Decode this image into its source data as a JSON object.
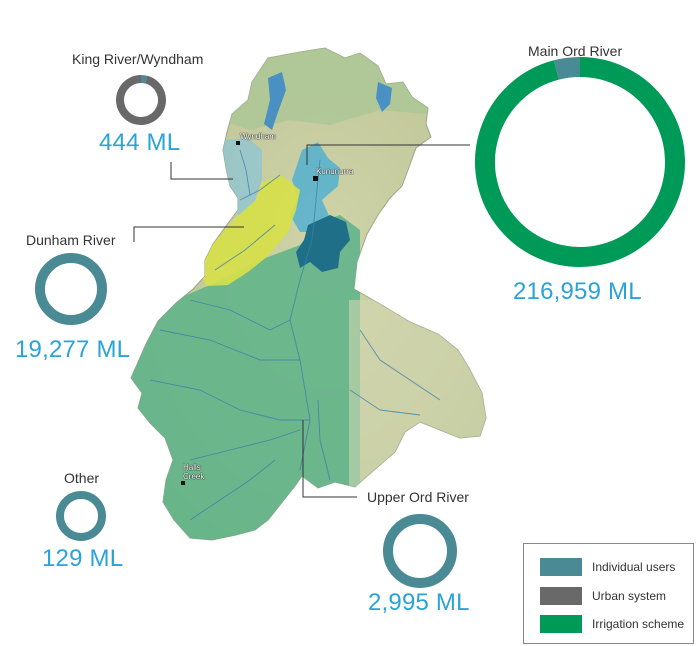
{
  "colors": {
    "individual_users": "#4a8a95",
    "urban_system": "#696969",
    "irrigation_scheme": "#009a58",
    "volume_text": "#2aa3d8"
  },
  "regions": [
    {
      "name": "King River/Wyndham",
      "volume": "444 ML",
      "shares": {
        "individual_users": 0.04,
        "urban_system": 0.96,
        "irrigation_scheme": 0
      }
    },
    {
      "name": "Main Ord River",
      "volume": "216,959 ML",
      "shares": {
        "individual_users": 0.04,
        "urban_system": 0,
        "irrigation_scheme": 0.96
      }
    },
    {
      "name": "Dunham River",
      "volume": "19,277 ML",
      "shares": {
        "individual_users": 1,
        "urban_system": 0,
        "irrigation_scheme": 0
      }
    },
    {
      "name": "Other",
      "volume": "129 ML",
      "shares": {
        "individual_users": 1,
        "urban_system": 0,
        "irrigation_scheme": 0
      }
    },
    {
      "name": "Upper Ord River",
      "volume": "2,995 ML",
      "shares": {
        "individual_users": 1,
        "urban_system": 0,
        "irrigation_scheme": 0
      }
    }
  ],
  "towns": [
    "Wyndham",
    "Kununurra",
    "Halls Creek"
  ],
  "legend": [
    {
      "key": "individual_users",
      "label": "Individual users"
    },
    {
      "key": "urban_system",
      "label": "Urban system"
    },
    {
      "key": "irrigation_scheme",
      "label": "Irrigation scheme"
    }
  ]
}
